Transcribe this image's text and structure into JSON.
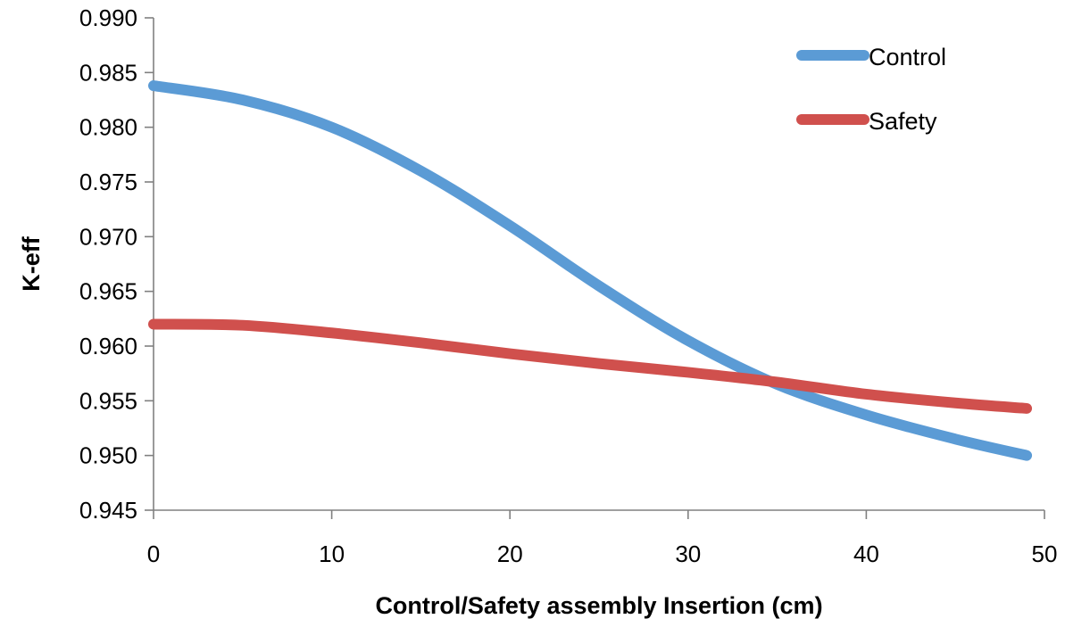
{
  "chart_data": {
    "type": "line",
    "title": "",
    "xlabel": "Control/Safety assembly Insertion (cm)",
    "ylabel": "K-eff",
    "xlim": [
      0,
      50
    ],
    "ylim": [
      0.945,
      0.99
    ],
    "xticks": [
      "0",
      "10",
      "20",
      "30",
      "40",
      "50"
    ],
    "yticks": [
      "0.945",
      "0.950",
      "0.955",
      "0.960",
      "0.965",
      "0.970",
      "0.975",
      "0.980",
      "0.985",
      "0.990"
    ],
    "grid": false,
    "legend_position": "top-right",
    "series": [
      {
        "name": "Control",
        "color": "#5B9BD5",
        "x": [
          0,
          5,
          10,
          15,
          20,
          25,
          30,
          35,
          40,
          45,
          49
        ],
        "y": [
          0.9838,
          0.9825,
          0.98,
          0.976,
          0.971,
          0.9655,
          0.9605,
          0.9565,
          0.9537,
          0.9515,
          0.95
        ]
      },
      {
        "name": "Safety",
        "color": "#D0504D",
        "x": [
          0,
          5,
          10,
          15,
          20,
          25,
          30,
          35,
          40,
          45,
          49
        ],
        "y": [
          0.962,
          0.9619,
          0.9612,
          0.9603,
          0.9593,
          0.9584,
          0.9576,
          0.9567,
          0.9556,
          0.9548,
          0.9543
        ]
      }
    ]
  }
}
